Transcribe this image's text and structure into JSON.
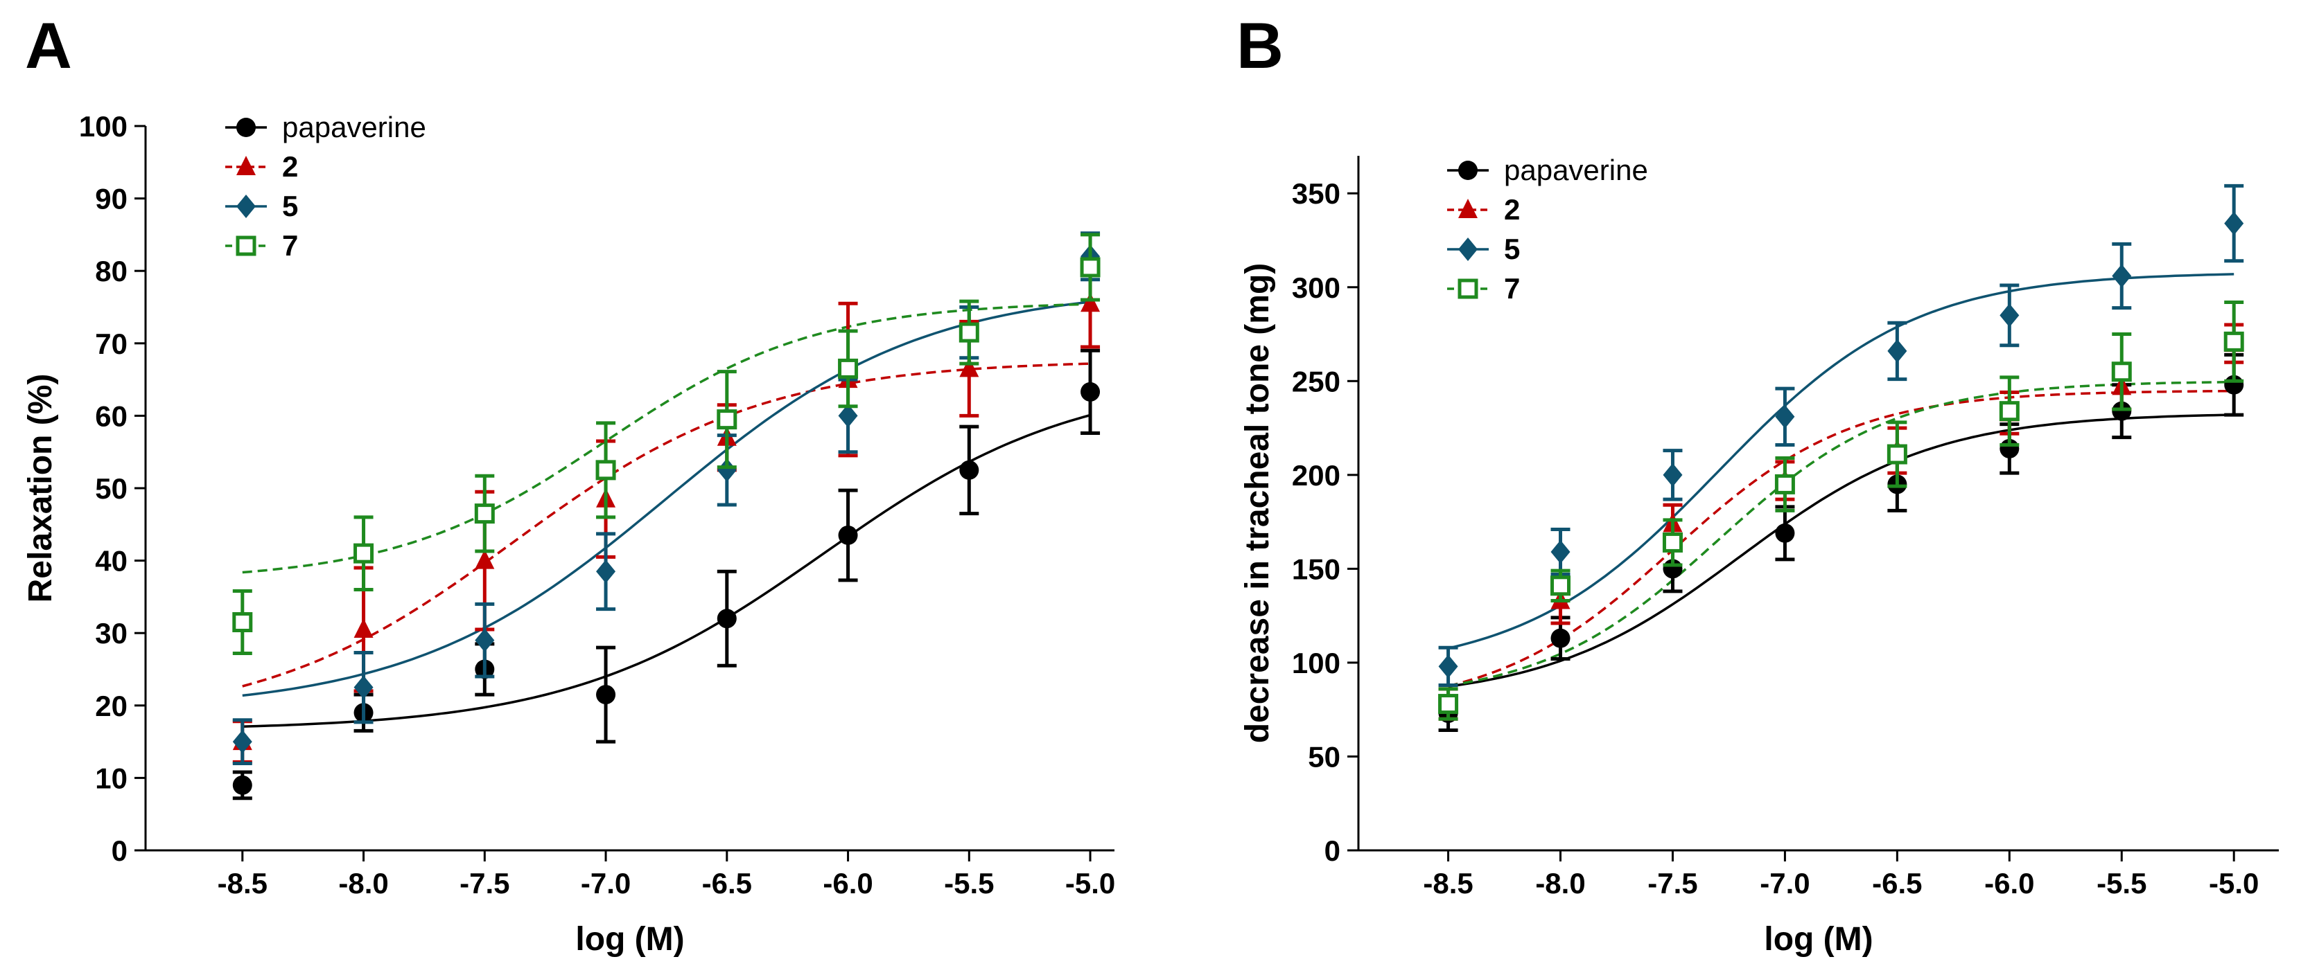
{
  "colors": {
    "papaverine": "#000000",
    "c2": "#c00000",
    "c5": "#0f5370",
    "c7": "#1f8a1f"
  },
  "chart_data": [
    {
      "type": "line",
      "panel_label": "A",
      "xlabel": "log (M)",
      "ylabel": "Relaxation (%)",
      "xlim": [
        -8.9,
        -4.9
      ],
      "ylim": [
        0,
        100
      ],
      "x_ticks": [
        -8.5,
        -8.0,
        -7.5,
        -7.0,
        -6.5,
        -6.0,
        -5.5,
        -5.0
      ],
      "x_tick_labels": [
        "-8.5",
        "-8.0",
        "-7.5",
        "-7.0",
        "-6.5",
        "-6.0",
        "-5.5",
        "-5.0"
      ],
      "y_ticks": [
        0,
        10,
        20,
        30,
        40,
        50,
        60,
        70,
        80,
        90,
        100
      ],
      "y_tick_labels": [
        "0",
        "10",
        "20",
        "30",
        "40",
        "50",
        "60",
        "70",
        "80",
        "90",
        "100"
      ],
      "legend_position": "top-left",
      "x": [
        -8.5,
        -8.0,
        -7.5,
        -7.0,
        -6.5,
        -6.0,
        -5.5,
        -5.0
      ],
      "series": [
        {
          "name": "papaverine",
          "color_key": "papaverine",
          "marker": "circle",
          "dashed": false,
          "values": [
            9,
            19,
            25,
            21.5,
            32,
            43.5,
            52.5,
            63.3
          ],
          "errors": [
            1.8,
            2.5,
            3.5,
            6.5,
            6.5,
            6.2,
            6,
            5.7
          ],
          "fit": {
            "bottom": 16.6,
            "top": 65.4,
            "logEC50": -6.1,
            "hill": 0.83
          }
        },
        {
          "name": "2",
          "color_key": "c2",
          "marker": "triangle",
          "dashed": true,
          "values": [
            15,
            30.5,
            40,
            48.5,
            57,
            65,
            66.5,
            75.5
          ],
          "errors": [
            2.8,
            8.5,
            9.5,
            8,
            4.5,
            10.5,
            6.5,
            6
          ],
          "fit": {
            "bottom": 17.5,
            "top": 67.7,
            "logEC50": -7.38,
            "hill": 0.84
          }
        },
        {
          "name": "5",
          "color_key": "c5",
          "marker": "diamond",
          "dashed": false,
          "values": [
            15,
            22.5,
            29,
            38.5,
            52.5,
            60,
            71.5,
            82
          ],
          "errors": [
            3,
            4.8,
            5,
            5.2,
            4.8,
            5,
            3.5,
            3.2
          ],
          "fit": {
            "bottom": 19.3,
            "top": 77.8,
            "logEC50": -6.75,
            "hill": 0.82
          }
        },
        {
          "name": "7",
          "color_key": "c7",
          "marker": "square",
          "dashed": true,
          "values": [
            31.5,
            41,
            46.5,
            52.5,
            59.5,
            66.5,
            71.5,
            80.5
          ],
          "errors": [
            4.3,
            5,
            5.2,
            6.5,
            6.6,
            5.2,
            4.3,
            4.5
          ],
          "fit": {
            "bottom": 37.2,
            "top": 75.8,
            "logEC50": -7.0,
            "hill": 1.0
          }
        }
      ]
    },
    {
      "type": "line",
      "panel_label": "B",
      "xlabel": "log (M)",
      "ylabel": "decrease in tracheal tone (mg)",
      "xlim": [
        -8.9,
        -4.8
      ],
      "ylim": [
        0,
        370
      ],
      "x_ticks": [
        -8.5,
        -8.0,
        -7.5,
        -7.0,
        -6.5,
        -6.0,
        -5.5,
        -5.0
      ],
      "x_tick_labels": [
        "-8.5",
        "-8.0",
        "-7.5",
        "-7.0",
        "-6.5",
        "-6.0",
        "-5.5",
        "-5.0"
      ],
      "y_ticks": [
        0,
        50,
        100,
        150,
        200,
        250,
        300,
        350
      ],
      "y_tick_labels": [
        "0",
        "50",
        "100",
        "150",
        "200",
        "250",
        "300",
        "350"
      ],
      "legend_position": "top-left",
      "x": [
        -8.5,
        -8.0,
        -7.5,
        -7.0,
        -6.5,
        -6.0,
        -5.5,
        -5.0
      ],
      "series": [
        {
          "name": "papaverine",
          "color_key": "papaverine",
          "marker": "circle",
          "dashed": false,
          "values": [
            73,
            113,
            150,
            169,
            195,
            214,
            234,
            248
          ],
          "errors": [
            9,
            11,
            12,
            14,
            14,
            13,
            14,
            16
          ],
          "fit": {
            "bottom": 80,
            "top": 233,
            "logEC50": -7.2,
            "hill": 1.0
          }
        },
        {
          "name": "2",
          "color_key": "c2",
          "marker": "triangle",
          "dashed": true,
          "values": [
            78,
            133,
            174,
            197,
            213,
            233,
            247,
            270
          ],
          "errors": [
            8,
            12,
            10,
            10,
            12,
            11,
            12,
            10
          ],
          "fit": {
            "bottom": 75,
            "top": 245,
            "logEC50": -7.5,
            "hill": 1.1
          }
        },
        {
          "name": "5",
          "color_key": "c5",
          "marker": "diamond",
          "dashed": false,
          "values": [
            98,
            159,
            200,
            231,
            266,
            285,
            306,
            334
          ],
          "errors": [
            10,
            12,
            13,
            15,
            15,
            16,
            17,
            20
          ],
          "fit": {
            "bottom": 95,
            "top": 308,
            "logEC50": -7.3,
            "hill": 1.0
          }
        },
        {
          "name": "7",
          "color_key": "c7",
          "marker": "square",
          "dashed": true,
          "values": [
            78,
            141,
            164,
            195,
            211,
            234,
            255,
            271
          ],
          "errors": [
            8,
            8,
            12,
            14,
            17,
            18,
            20,
            21
          ],
          "fit": {
            "bottom": 80,
            "top": 250,
            "logEC50": -7.3,
            "hill": 1.1
          }
        }
      ]
    }
  ]
}
